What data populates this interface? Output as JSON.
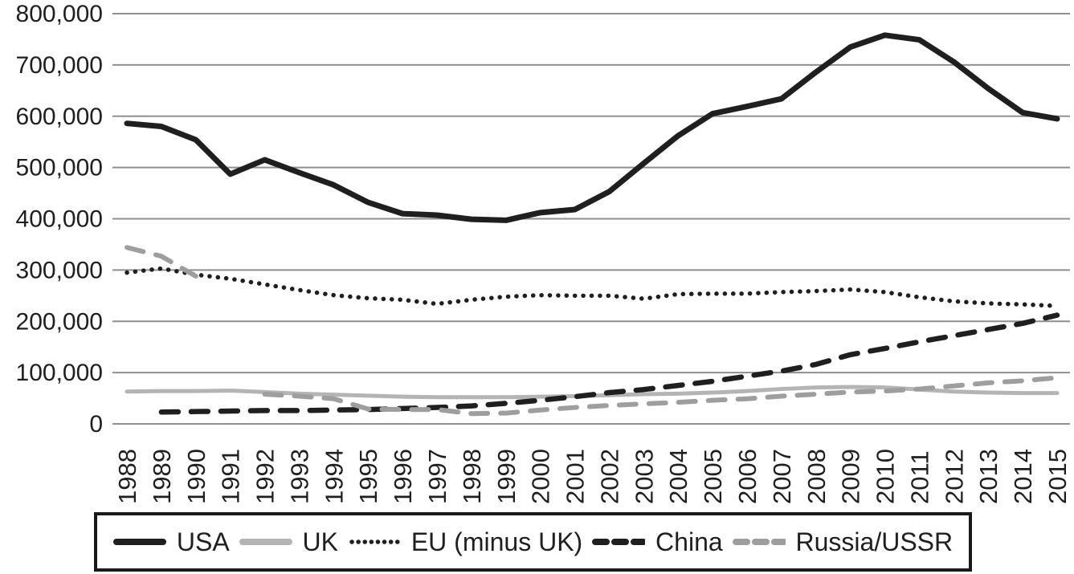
{
  "chart_data": {
    "type": "line",
    "title": "",
    "xlabel": "",
    "ylabel": "",
    "ylim": [
      0,
      800000
    ],
    "grid": "horizontal",
    "legend_position": "bottom-boxed",
    "yticks": [
      "0",
      "100,000",
      "200,000",
      "300,000",
      "400,000",
      "500,000",
      "600,000",
      "700,000",
      "800,000"
    ],
    "x": [
      "1988",
      "1989",
      "1990",
      "1991",
      "1992",
      "1993",
      "1994",
      "1995",
      "1996",
      "1997",
      "1998",
      "1999",
      "2000",
      "2001",
      "2002",
      "2003",
      "2004",
      "2005",
      "2006",
      "2007",
      "2008",
      "2009",
      "2010",
      "2011",
      "2012",
      "2013",
      "2014",
      "2015"
    ],
    "series": [
      {
        "name": "USA",
        "style": "solid",
        "color": "#1f1f1f",
        "values": [
          586000,
          580000,
          554000,
          487000,
          515000,
          490000,
          466000,
          432000,
          410000,
          407000,
          399000,
          397000,
          412000,
          418000,
          453000,
          508000,
          562000,
          605000,
          619000,
          634000,
          686000,
          735000,
          758000,
          749000,
          706000,
          654000,
          607000,
          595000
        ]
      },
      {
        "name": "UK",
        "style": "solid",
        "color": "#b4b4b4",
        "values": [
          63000,
          64000,
          64000,
          65000,
          62000,
          59000,
          57000,
          55000,
          53000,
          52000,
          52000,
          52000,
          53000,
          54000,
          56000,
          58000,
          59000,
          61000,
          64000,
          68000,
          71000,
          72000,
          71000,
          67000,
          63000,
          61000,
          60000,
          60000
        ]
      },
      {
        "name": "EU (minus UK)",
        "style": "dotted",
        "color": "#1f1f1f",
        "values": [
          295000,
          303000,
          291000,
          283000,
          272000,
          261000,
          251000,
          245000,
          242000,
          234000,
          242000,
          248000,
          251000,
          250000,
          250000,
          244000,
          253000,
          254000,
          254000,
          257000,
          259000,
          262000,
          257000,
          247000,
          239000,
          235000,
          233000,
          230000
        ]
      },
      {
        "name": "China",
        "style": "dashed",
        "color": "#1f1f1f",
        "values": [
          null,
          23000,
          24000,
          25000,
          26000,
          26000,
          27000,
          28000,
          30000,
          32000,
          35000,
          40000,
          46000,
          53000,
          61000,
          67000,
          75000,
          83000,
          93000,
          103000,
          116000,
          135000,
          147000,
          160000,
          172000,
          184000,
          196000,
          212000
        ]
      },
      {
        "name": "Russia/USSR",
        "style": "dashed",
        "color": "#9e9e9e",
        "values": [
          344000,
          327000,
          288000,
          null,
          58000,
          54000,
          49000,
          29000,
          28000,
          28000,
          20000,
          21000,
          27000,
          32000,
          36000,
          39000,
          42000,
          46000,
          49000,
          54000,
          58000,
          62000,
          64000,
          68000,
          74000,
          80000,
          84000,
          90000
        ]
      }
    ]
  },
  "legend": {
    "items": [
      {
        "label": "USA",
        "swatch": "thick-black-solid-line"
      },
      {
        "label": "UK",
        "swatch": "thick-gray-solid-line"
      },
      {
        "label": "EU (minus UK)",
        "swatch": "black-dotted-line"
      },
      {
        "label": "China",
        "swatch": "black-dashed-line"
      },
      {
        "label": "Russia/USSR",
        "swatch": "gray-dashed-line"
      }
    ]
  }
}
